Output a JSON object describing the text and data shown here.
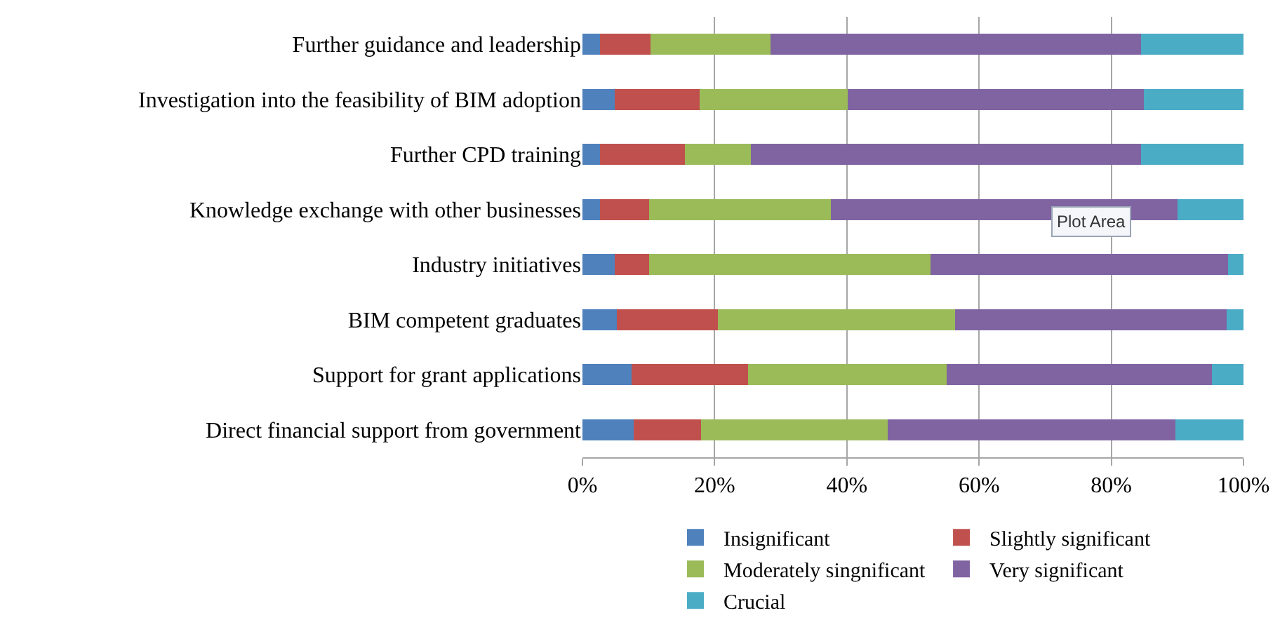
{
  "chart_data": {
    "type": "bar",
    "orientation": "horizontal",
    "stacked": true,
    "categories": [
      "Further guidance and leadership",
      "Investigation into the feasibility of BIM adoption",
      "Further CPD training",
      "Knowledge exchange with other businesses",
      "Industry initiatives",
      "BIM competent graduates",
      "Support for grant applications",
      "Direct financial support from government"
    ],
    "series": [
      {
        "name": "Insignificant",
        "color": "#4f81bd",
        "values": [
          2.6,
          4.9,
          2.6,
          2.6,
          4.9,
          5.2,
          7.4,
          7.7
        ]
      },
      {
        "name": "Slightly significant",
        "color": "#c0504d",
        "values": [
          7.7,
          12.8,
          12.9,
          7.5,
          5.2,
          15.3,
          17.6,
          10.2
        ]
      },
      {
        "name": "Moderately singnificant",
        "color": "#9bbb59",
        "values": [
          18.1,
          22.4,
          10.0,
          27.5,
          42.5,
          35.9,
          30.1,
          28.3
        ]
      },
      {
        "name": "Very significant",
        "color": "#8064a2",
        "values": [
          56.1,
          44.8,
          59.0,
          52.4,
          45.1,
          41.0,
          40.1,
          43.5
        ]
      },
      {
        "name": "Crucial",
        "color": "#4bacc6",
        "values": [
          15.5,
          15.1,
          15.5,
          10.0,
          2.3,
          2.6,
          4.8,
          10.3
        ]
      }
    ],
    "xlim": [
      0,
      100
    ],
    "xticks": [
      {
        "value": 0,
        "label": "0%"
      },
      {
        "value": 20,
        "label": "20%"
      },
      {
        "value": 40,
        "label": "40%"
      },
      {
        "value": 60,
        "label": "60%"
      },
      {
        "value": 80,
        "label": "80%"
      },
      {
        "value": 100,
        "label": "100%"
      }
    ],
    "grid": "x",
    "legend": "bottom",
    "annotations": [
      "Plot Area"
    ]
  }
}
